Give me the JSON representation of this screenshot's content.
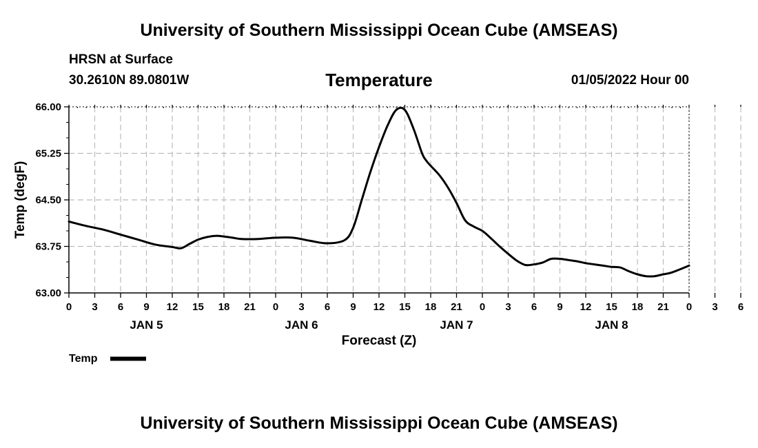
{
  "header": {
    "title_top": "University of Southern Mississippi Ocean Cube (AMSEAS)",
    "station": "HRSN at Surface",
    "coords": "30.2610N  89.0801W",
    "chart_title": "Temperature",
    "datetime": "01/05/2022 Hour 00"
  },
  "footer": {
    "title_bottom": "University of Southern Mississippi Ocean Cube (AMSEAS)"
  },
  "legend": {
    "label": "Temp"
  },
  "colors": {
    "line": "#000000",
    "grid": "#bbbbbb",
    "background": "#ffffff"
  },
  "chart_data": {
    "type": "line",
    "title": "Temperature",
    "xlabel": "Forecast (Z)",
    "ylabel": "Temp (degF)",
    "ylim": [
      63.0,
      66.0
    ],
    "xlim": [
      0,
      72
    ],
    "y_ticks": [
      "63.00",
      "63.75",
      "64.50",
      "65.25",
      "66.00"
    ],
    "x_tick_labels": [
      "0",
      "3",
      "6",
      "9",
      "12",
      "15",
      "18",
      "21",
      "0",
      "3",
      "6",
      "9",
      "12",
      "15",
      "18",
      "21",
      "0",
      "3",
      "6",
      "9",
      "12",
      "15",
      "18",
      "21",
      "0",
      "3",
      "6",
      "9",
      "12",
      "15",
      "18",
      "21",
      "0"
    ],
    "day_labels": [
      {
        "label": "JAN 5",
        "hour": 9
      },
      {
        "label": "JAN 6",
        "hour": 27
      },
      {
        "label": "JAN 7",
        "hour": 45
      },
      {
        "label": "JAN 8",
        "hour": 63
      }
    ],
    "series": [
      {
        "name": "Temp",
        "x": [
          0,
          2,
          4,
          6,
          8,
          10,
          12,
          13,
          14,
          15,
          16,
          17,
          18,
          19,
          20,
          22,
          24,
          26,
          28,
          30,
          32,
          33,
          34,
          35,
          36,
          37,
          38,
          39,
          40,
          41,
          41.5,
          42,
          43,
          44,
          45,
          46,
          47,
          48,
          49,
          50,
          51,
          52,
          53,
          54,
          55,
          56,
          57,
          58,
          59,
          60,
          61,
          62,
          63,
          64,
          65,
          66,
          67,
          68,
          69,
          70,
          72
        ],
        "y": [
          64.15,
          64.08,
          64.02,
          63.94,
          63.86,
          63.78,
          63.74,
          63.72,
          63.79,
          63.86,
          63.9,
          63.92,
          63.91,
          63.89,
          63.87,
          63.87,
          63.89,
          63.89,
          63.84,
          63.8,
          63.85,
          64.05,
          64.5,
          64.95,
          65.35,
          65.7,
          65.95,
          65.95,
          65.65,
          65.25,
          65.13,
          65.05,
          64.9,
          64.7,
          64.45,
          64.17,
          64.07,
          64.0,
          63.88,
          63.75,
          63.63,
          63.52,
          63.45,
          63.46,
          63.49,
          63.55,
          63.55,
          63.53,
          63.51,
          63.48,
          63.46,
          63.44,
          63.42,
          63.41,
          63.35,
          63.3,
          63.27,
          63.27,
          63.3,
          63.33,
          63.44
        ]
      }
    ]
  }
}
